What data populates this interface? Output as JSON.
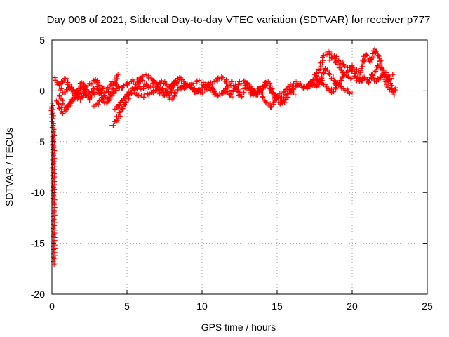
{
  "chart_data": {
    "type": "scatter",
    "title": "Day 008 of 2021, Sidereal Day-to-day VTEC variation (SDTVAR) for receiver p777",
    "xlabel": "GPS time / hours",
    "ylabel": "SDTVAR / TECUs",
    "xlim": [
      0,
      25
    ],
    "ylim": [
      -20,
      5
    ],
    "xticks": [
      0,
      5,
      10,
      15,
      20,
      25
    ],
    "yticks": [
      5,
      0,
      -5,
      -10,
      -15,
      -20
    ],
    "grid": true,
    "marker": "+",
    "series": [
      {
        "name": "SDTVAR",
        "color": "#ff0000",
        "segments": [
          {
            "x": [
              0.0,
              0.05,
              0.1,
              0.15
            ],
            "y": [
              -1.2,
              -3.0,
              -4.1,
              -17.1
            ]
          },
          {
            "x": [
              0.2,
              0.5,
              0.8,
              1.2,
              1.6,
              2.0,
              2.5,
              3.0,
              3.5,
              4.0,
              4.5,
              5.0
            ],
            "y": [
              1.3,
              0.5,
              -0.2,
              0.4,
              -0.6,
              0.3,
              -0.9,
              0.2,
              -0.5,
              0.9,
              0.3,
              0.6
            ]
          },
          {
            "x": [
              0.3,
              0.7,
              1.1,
              1.5,
              1.9,
              2.3
            ],
            "y": [
              -1.0,
              -2.2,
              -1.4,
              -0.8,
              -0.2,
              -0.5
            ]
          },
          {
            "x": [
              0.5,
              1.0,
              1.5,
              2.0,
              2.5,
              3.0,
              3.5,
              4.0
            ],
            "y": [
              -0.5,
              -1.8,
              -0.6,
              0.8,
              -0.2,
              0.4,
              -1.2,
              -0.7
            ]
          },
          {
            "x": [
              0.4,
              0.9,
              1.4,
              1.9,
              2.4,
              2.9,
              3.4,
              3.9,
              4.4
            ],
            "y": [
              0.6,
              1.2,
              0.1,
              -0.9,
              0.5,
              1.1,
              0.2,
              -0.4,
              1.6
            ]
          },
          {
            "x": [
              2.8,
              3.3,
              3.8,
              4.3,
              4.8,
              5.3,
              5.8,
              6.3,
              6.8,
              7.3,
              7.8,
              8.3,
              8.8,
              9.3,
              9.8,
              10.3,
              10.8,
              11.3,
              11.8
            ],
            "y": [
              -1.5,
              -0.9,
              -0.6,
              0.2,
              0.5,
              0.9,
              1.2,
              0.6,
              0.3,
              1.0,
              0.4,
              0.8,
              0.2,
              0.6,
              1.0,
              0.3,
              0.9,
              1.4,
              0.5
            ]
          },
          {
            "x": [
              4.0,
              4.3,
              4.6,
              4.9,
              5.2,
              5.5,
              5.8,
              6.1,
              6.4
            ],
            "y": [
              -3.4,
              -2.9,
              -2.0,
              -1.1,
              -0.4,
              0.1,
              0.4,
              0.2,
              0.5
            ]
          },
          {
            "x": [
              4.2,
              4.6,
              5.0,
              5.4,
              5.8,
              6.2,
              6.6,
              7.0,
              7.4,
              7.8,
              8.2
            ],
            "y": [
              -1.8,
              -1.1,
              -0.5,
              0.3,
              0.9,
              1.6,
              1.2,
              0.4,
              0.0,
              -0.3,
              0.5
            ]
          },
          {
            "x": [
              5.5,
              6.0,
              6.5,
              7.0,
              7.5,
              8.0,
              8.5,
              9.0,
              9.5,
              10.0,
              10.5,
              11.0,
              11.5,
              12.0
            ],
            "y": [
              -0.2,
              -0.6,
              -0.3,
              0.1,
              -0.5,
              0.6,
              1.3,
              0.7,
              0.2,
              -0.2,
              0.3,
              -0.5,
              0.0,
              -0.6
            ]
          },
          {
            "x": [
              6.8,
              7.2,
              7.6,
              8.0,
              8.4,
              8.8,
              9.2,
              9.6,
              10.0,
              10.4,
              10.8,
              11.2,
              11.6,
              12.0,
              12.4
            ],
            "y": [
              0.9,
              0.3,
              -0.4,
              -0.8,
              0.1,
              0.7,
              0.4,
              -0.3,
              0.3,
              0.8,
              -0.1,
              -0.4,
              0.2,
              0.9,
              0.1
            ]
          },
          {
            "x": [
              11.8,
              12.2,
              12.6,
              13.0,
              13.4,
              13.8,
              14.2,
              14.6,
              15.0,
              15.4,
              15.8,
              16.2
            ],
            "y": [
              -0.3,
              0.4,
              -0.6,
              0.8,
              -0.2,
              0.2,
              -1.0,
              -1.6,
              -0.5,
              -0.9,
              0.1,
              -0.4
            ]
          },
          {
            "x": [
              12.4,
              12.8,
              13.2,
              13.6,
              14.0,
              14.4,
              14.8,
              15.2,
              15.6,
              16.0,
              16.4,
              16.8,
              17.2,
              17.6,
              18.0
            ],
            "y": [
              0.6,
              1.0,
              0.3,
              -0.4,
              0.5,
              0.9,
              -0.6,
              -1.3,
              -0.8,
              0.2,
              0.6,
              0.3,
              0.8,
              0.4,
              1.0
            ]
          },
          {
            "x": [
              13.0,
              13.4,
              13.8,
              14.2,
              14.6,
              15.0,
              15.4,
              15.8,
              16.2,
              16.6,
              17.0,
              17.4,
              17.8
            ],
            "y": [
              0.2,
              -0.5,
              -0.1,
              0.6,
              0.1,
              -0.7,
              -0.2,
              0.4,
              0.9,
              0.5,
              0.2,
              0.7,
              1.2
            ]
          },
          {
            "x": [
              17.0,
              17.4,
              17.8,
              18.1,
              18.4,
              18.7,
              19.0,
              19.3,
              19.6,
              19.9,
              20.2,
              20.5,
              20.8
            ],
            "y": [
              0.4,
              1.0,
              2.0,
              3.5,
              3.9,
              3.3,
              2.6,
              2.0,
              1.5,
              1.2,
              1.4,
              1.0,
              1.3
            ]
          },
          {
            "x": [
              17.6,
              17.9,
              18.2,
              18.5,
              18.8,
              19.1,
              19.4,
              19.7,
              20.0
            ],
            "y": [
              0.3,
              1.0,
              2.2,
              1.6,
              1.0,
              0.5,
              0.2,
              0.0,
              -0.2
            ]
          },
          {
            "x": [
              17.5,
              17.8,
              18.1,
              18.4,
              18.7,
              19.0,
              19.3,
              19.6,
              19.9,
              20.2
            ],
            "y": [
              1.6,
              1.1,
              0.6,
              0.2,
              -0.1,
              0.6,
              1.2,
              1.8,
              2.3,
              1.7
            ]
          },
          {
            "x": [
              18.5,
              18.8,
              19.1,
              19.4,
              19.7,
              20.0,
              20.3
            ],
            "y": [
              3.0,
              3.5,
              3.0,
              2.6,
              2.3,
              2.5,
              1.9
            ]
          },
          {
            "x": [
              20.3,
              20.6,
              20.9,
              21.2,
              21.5,
              21.8,
              22.1,
              22.4,
              22.7
            ],
            "y": [
              1.0,
              2.2,
              3.6,
              2.8,
              4.1,
              3.2,
              1.6,
              1.0,
              1.6
            ]
          },
          {
            "x": [
              20.5,
              20.8,
              21.1,
              21.4,
              21.7,
              22.0,
              22.3,
              22.6,
              22.9
            ],
            "y": [
              0.9,
              1.2,
              0.8,
              1.5,
              2.5,
              2.1,
              0.6,
              -0.1,
              0.3
            ]
          },
          {
            "x": [
              21.0,
              21.3,
              21.6,
              21.9,
              22.2,
              22.5,
              22.8
            ],
            "y": [
              1.1,
              1.6,
              0.9,
              1.3,
              1.8,
              1.1,
              -0.4
            ]
          }
        ]
      }
    ]
  }
}
